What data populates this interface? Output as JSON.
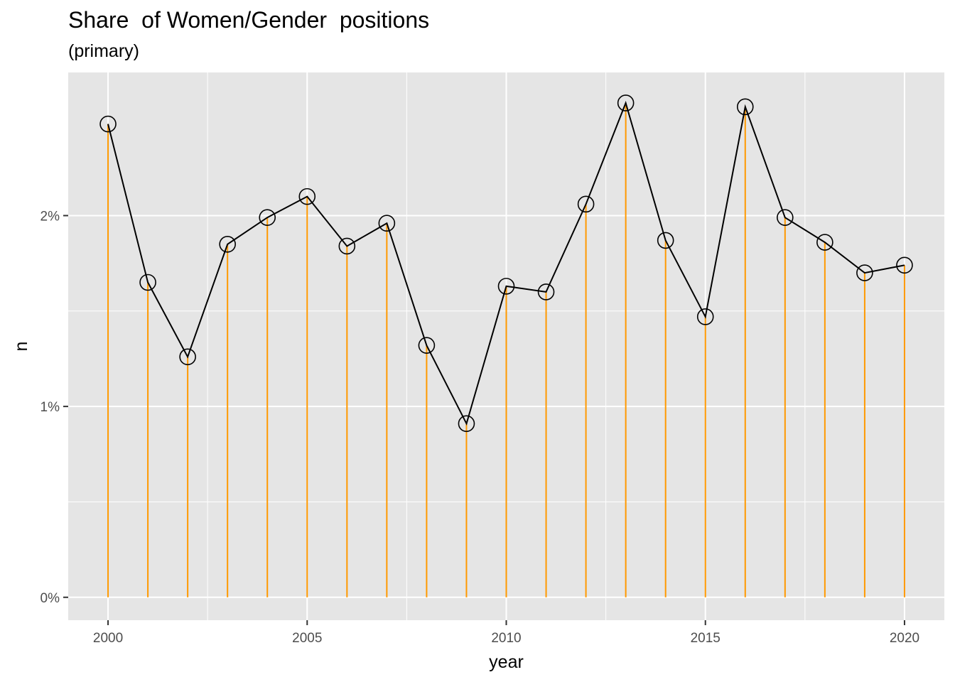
{
  "chart_data": {
    "type": "line",
    "title": "Share  of Women/Gender  positions",
    "subtitle": "(primary)",
    "xlabel": "year",
    "ylabel": "n",
    "x": [
      2000,
      2001,
      2002,
      2003,
      2004,
      2005,
      2006,
      2007,
      2008,
      2009,
      2010,
      2011,
      2012,
      2013,
      2014,
      2015,
      2016,
      2017,
      2018,
      2019,
      2020
    ],
    "values": [
      2.48,
      1.65,
      1.26,
      1.85,
      1.99,
      2.1,
      1.84,
      1.96,
      1.32,
      0.91,
      1.63,
      1.6,
      2.06,
      2.59,
      1.87,
      1.47,
      2.57,
      1.99,
      1.86,
      1.7,
      1.74
    ],
    "xlim": [
      1999,
      2021
    ],
    "ylim": [
      -0.12,
      2.75
    ],
    "x_ticks": [
      2000,
      2005,
      2010,
      2015,
      2020
    ],
    "x_tick_labels": [
      "2000",
      "2005",
      "2010",
      "2015",
      "2020"
    ],
    "y_ticks": [
      0,
      1,
      2
    ],
    "y_tick_labels": [
      "0%",
      "1%",
      "2%"
    ],
    "grid": true,
    "colors": {
      "panel": "#e5e5e5",
      "grid": "#ffffff",
      "stem": "#ff9900",
      "line": "#000000"
    }
  }
}
